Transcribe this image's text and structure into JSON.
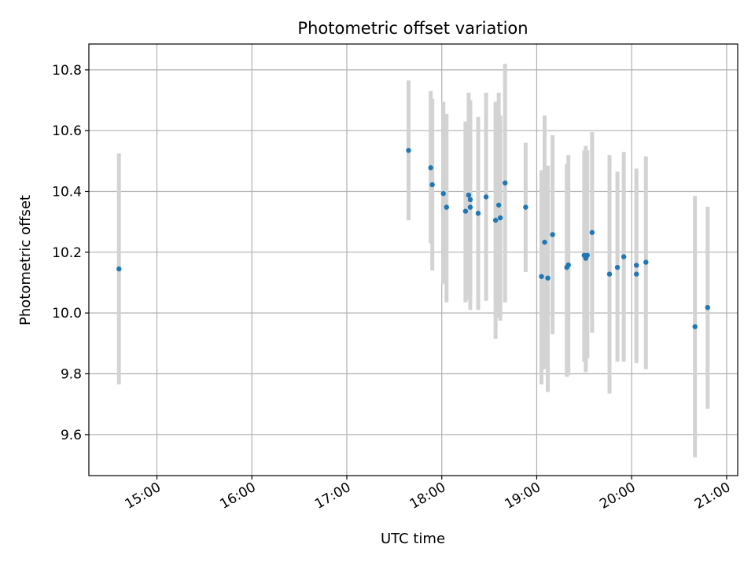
{
  "chart_data": {
    "type": "scatter",
    "title": "Photometric offset variation",
    "xlabel": "UTC time",
    "ylabel": "Photometric offset",
    "x_unit": "UTC hh:mm",
    "xlim": [
      "14:17",
      "21:07"
    ],
    "ylim": [
      9.465,
      10.885
    ],
    "xticks": [
      "15:00",
      "16:00",
      "17:00",
      "18:00",
      "19:00",
      "20:00",
      "21:00"
    ],
    "yticks": [
      9.6,
      9.8,
      10.0,
      10.2,
      10.4,
      10.6,
      10.8
    ],
    "ytick_labels": [
      "9.6",
      "9.8",
      "10.0",
      "10.2",
      "10.4",
      "10.6",
      "10.8"
    ],
    "grid": true,
    "point_color": "#1f77b4",
    "errorbar_color": "#d3d3d3",
    "series": [
      {
        "points": [
          {
            "x": "14:36",
            "y": 10.145,
            "lo": 9.765,
            "hi": 10.525
          },
          {
            "x": "17:39",
            "y": 10.535,
            "lo": 10.305,
            "hi": 10.765
          },
          {
            "x": "17:53",
            "y": 10.478,
            "lo": 10.23,
            "hi": 10.73
          },
          {
            "x": "17:54",
            "y": 10.422,
            "lo": 10.14,
            "hi": 10.705
          },
          {
            "x": "18:01",
            "y": 10.393,
            "lo": 10.095,
            "hi": 10.695
          },
          {
            "x": "18:03",
            "y": 10.348,
            "lo": 10.035,
            "hi": 10.655
          },
          {
            "x": "18:15",
            "y": 10.335,
            "lo": 10.035,
            "hi": 10.63
          },
          {
            "x": "18:17",
            "y": 10.388,
            "lo": 10.045,
            "hi": 10.725
          },
          {
            "x": "18:18",
            "y": 10.373,
            "lo": 10.05,
            "hi": 10.7
          },
          {
            "x": "18:18",
            "y": 10.348,
            "lo": 10.01,
            "hi": 10.685
          },
          {
            "x": "18:23",
            "y": 10.328,
            "lo": 10.01,
            "hi": 10.645
          },
          {
            "x": "18:28",
            "y": 10.382,
            "lo": 10.04,
            "hi": 10.725
          },
          {
            "x": "18:34",
            "y": 10.305,
            "lo": 9.915,
            "hi": 10.695
          },
          {
            "x": "18:36",
            "y": 10.355,
            "lo": 9.985,
            "hi": 10.725
          },
          {
            "x": "18:37",
            "y": 10.313,
            "lo": 9.975,
            "hi": 10.65
          },
          {
            "x": "18:40",
            "y": 10.428,
            "lo": 10.035,
            "hi": 10.82
          },
          {
            "x": "18:53",
            "y": 10.348,
            "lo": 10.135,
            "hi": 10.56
          },
          {
            "x": "19:03",
            "y": 10.12,
            "lo": 9.765,
            "hi": 10.47
          },
          {
            "x": "19:05",
            "y": 10.233,
            "lo": 9.815,
            "hi": 10.65
          },
          {
            "x": "19:07",
            "y": 10.115,
            "lo": 9.74,
            "hi": 10.485
          },
          {
            "x": "19:10",
            "y": 10.258,
            "lo": 9.93,
            "hi": 10.585
          },
          {
            "x": "19:19",
            "y": 10.15,
            "lo": 9.79,
            "hi": 10.49
          },
          {
            "x": "19:20",
            "y": 10.158,
            "lo": 9.795,
            "hi": 10.52
          },
          {
            "x": "19:30",
            "y": 10.19,
            "lo": 9.84,
            "hi": 10.535
          },
          {
            "x": "19:31",
            "y": 10.18,
            "lo": 9.805,
            "hi": 10.55
          },
          {
            "x": "19:32",
            "y": 10.19,
            "lo": 9.85,
            "hi": 10.535
          },
          {
            "x": "19:35",
            "y": 10.265,
            "lo": 9.935,
            "hi": 10.595
          },
          {
            "x": "19:46",
            "y": 10.128,
            "lo": 9.735,
            "hi": 10.52
          },
          {
            "x": "19:51",
            "y": 10.15,
            "lo": 9.84,
            "hi": 10.465
          },
          {
            "x": "19:55",
            "y": 10.185,
            "lo": 9.84,
            "hi": 10.53
          },
          {
            "x": "20:03",
            "y": 10.157,
            "lo": 9.835,
            "hi": 10.475
          },
          {
            "x": "20:03",
            "y": 10.128,
            "lo": 9.845,
            "hi": 10.42
          },
          {
            "x": "20:09",
            "y": 10.167,
            "lo": 9.815,
            "hi": 10.515
          },
          {
            "x": "20:40",
            "y": 9.955,
            "lo": 9.525,
            "hi": 10.385
          },
          {
            "x": "20:48",
            "y": 10.018,
            "lo": 9.685,
            "hi": 10.35
          }
        ]
      }
    ]
  }
}
